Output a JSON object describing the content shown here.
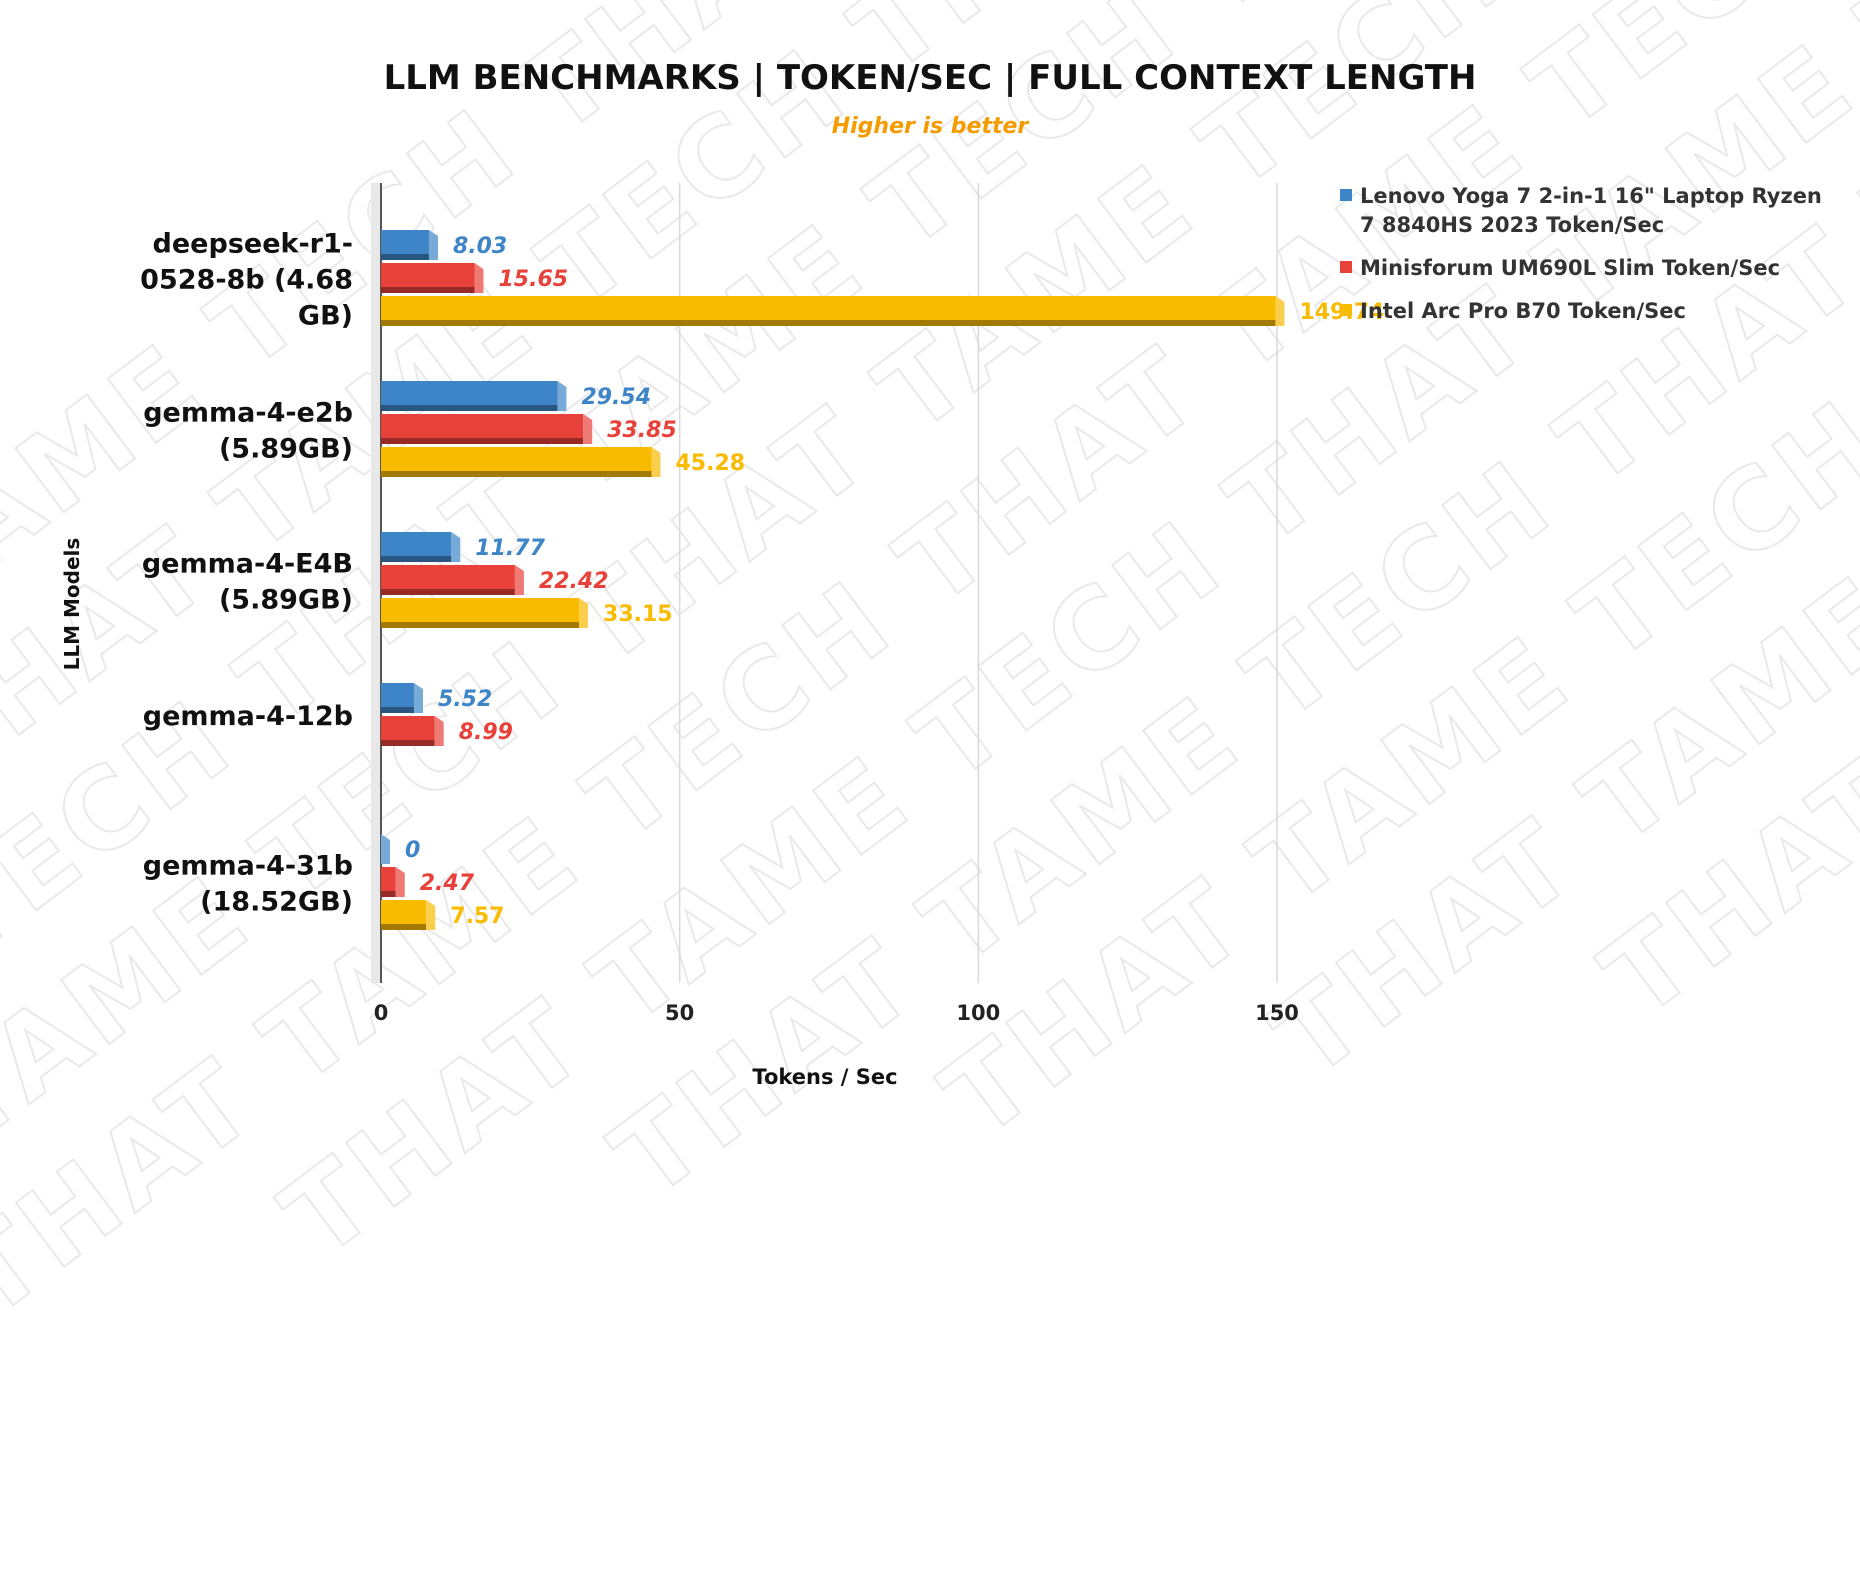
{
  "chart_data": {
    "type": "bar",
    "orientation": "horizontal",
    "title": "LLM BENCHMARKS | TOKEN/SEC | FULL CONTEXT LENGTH",
    "subtitle": "Higher is better",
    "watermark": "THAT TAME TECH",
    "xlabel": "Tokens / Sec",
    "ylabel": "LLM Models",
    "xlim": [
      0,
      150
    ],
    "xticks": [
      0,
      50,
      100,
      150
    ],
    "grid": true,
    "legend_position": "top-right",
    "categories": [
      [
        "deepseek-r1-",
        "0528-8b (4.68",
        "GB)"
      ],
      [
        "gemma-4-e2b",
        "(5.89GB)"
      ],
      [
        "gemma-4-E4B",
        "(5.89GB)"
      ],
      [
        "gemma-4-12b"
      ],
      [
        "gemma-4-31b",
        "(18.52GB)"
      ]
    ],
    "series": [
      {
        "name": "Lenovo Yoga 7 2-in-1 16\" Laptop Ryzen 7 8840HS 2023 Token/Sec",
        "legend_lines": [
          "Lenovo Yoga 7 2-in-1 16\" Laptop Ryzen",
          "7 8840HS 2023 Token/Sec"
        ],
        "color": "#3d85c6",
        "labels_italic": true,
        "values": [
          8.03,
          29.54,
          11.77,
          5.52,
          0
        ]
      },
      {
        "name": "Minisforum UM690L Slim Token/Sec",
        "legend_lines": [
          "Minisforum UM690L Slim Token/Sec"
        ],
        "color": "#e8413a",
        "labels_italic": true,
        "values": [
          15.65,
          33.85,
          22.42,
          8.99,
          2.47
        ]
      },
      {
        "name": "Intel Arc Pro B70 Token/Sec",
        "legend_lines": [
          "Intel Arc Pro B70 Token/Sec"
        ],
        "color": "#f9bb00",
        "labels_italic": false,
        "values": [
          149.74,
          45.28,
          33.15,
          null,
          7.57
        ]
      }
    ],
    "subtitle_color": "#f59b00"
  }
}
